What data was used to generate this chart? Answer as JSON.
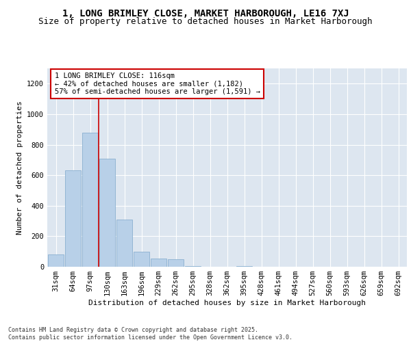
{
  "title_line1": "1, LONG BRIMLEY CLOSE, MARKET HARBOROUGH, LE16 7XJ",
  "title_line2": "Size of property relative to detached houses in Market Harborough",
  "xlabel": "Distribution of detached houses by size in Market Harborough",
  "ylabel": "Number of detached properties",
  "categories": [
    "31sqm",
    "64sqm",
    "97sqm",
    "130sqm",
    "163sqm",
    "196sqm",
    "229sqm",
    "262sqm",
    "295sqm",
    "328sqm",
    "362sqm",
    "395sqm",
    "428sqm",
    "461sqm",
    "494sqm",
    "527sqm",
    "560sqm",
    "593sqm",
    "626sqm",
    "659sqm",
    "692sqm"
  ],
  "values": [
    80,
    630,
    880,
    710,
    310,
    100,
    55,
    50,
    5,
    0,
    0,
    5,
    0,
    0,
    0,
    0,
    0,
    0,
    0,
    0,
    0
  ],
  "bar_color": "#b8d0e8",
  "bar_edge_color": "#8ab0d0",
  "highlight_line_color": "#cc0000",
  "annotation_text": "1 LONG BRIMLEY CLOSE: 116sqm\n← 42% of detached houses are smaller (1,182)\n57% of semi-detached houses are larger (1,591) →",
  "annotation_box_color": "#ffffff",
  "annotation_box_edge_color": "#cc0000",
  "background_color": "#dde6f0",
  "ylim": [
    0,
    1300
  ],
  "yticks": [
    0,
    200,
    400,
    600,
    800,
    1000,
    1200
  ],
  "footer": "Contains HM Land Registry data © Crown copyright and database right 2025.\nContains public sector information licensed under the Open Government Licence v3.0.",
  "title_fontsize": 10,
  "subtitle_fontsize": 9,
  "axis_label_fontsize": 8,
  "tick_fontsize": 7.5,
  "footer_fontsize": 6
}
